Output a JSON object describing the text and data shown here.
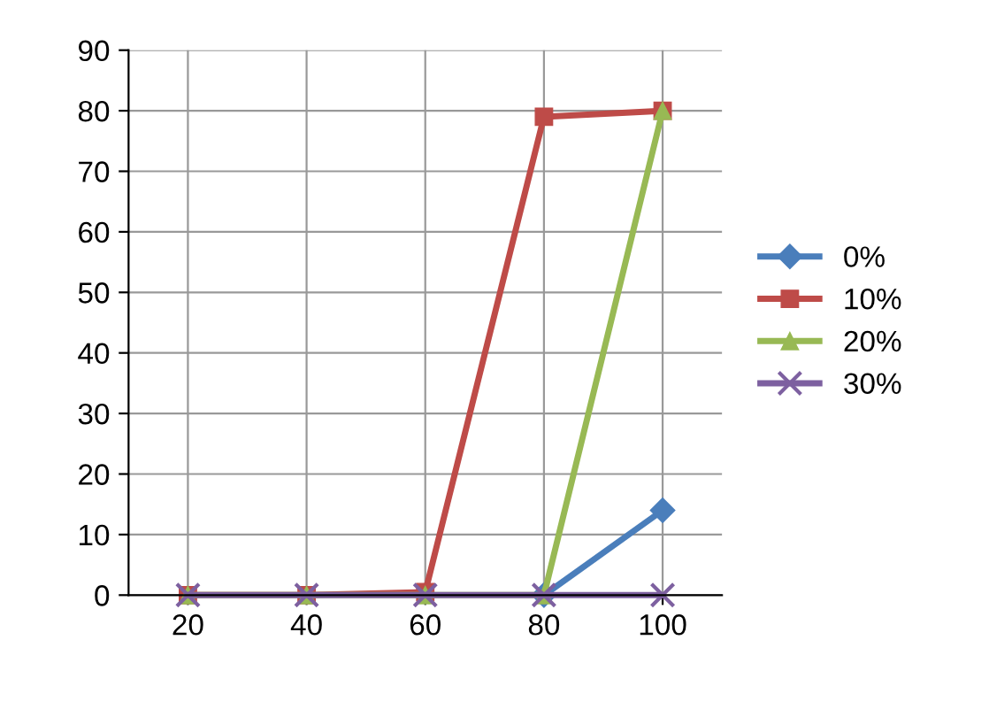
{
  "chart_data": {
    "type": "line",
    "categories": [
      "20",
      "40",
      "60",
      "80",
      "100"
    ],
    "series": [
      {
        "name": "0%",
        "color": "#4a7ebb",
        "marker": "diamond",
        "values": [
          null,
          null,
          null,
          0,
          14
        ]
      },
      {
        "name": "10%",
        "color": "#be4b48",
        "marker": "square",
        "values": [
          0,
          0,
          0.5,
          79,
          80
        ]
      },
      {
        "name": "20%",
        "color": "#98b954",
        "marker": "triangle",
        "values": [
          0,
          0,
          0,
          0,
          80
        ]
      },
      {
        "name": "30%",
        "color": "#7d60a0",
        "marker": "cross",
        "values": [
          0,
          0,
          0,
          0,
          0
        ]
      }
    ],
    "ylim": [
      0,
      90
    ],
    "yticks": [
      0,
      10,
      20,
      30,
      40,
      50,
      60,
      70,
      80,
      90
    ],
    "grid": true,
    "legend": "right"
  }
}
